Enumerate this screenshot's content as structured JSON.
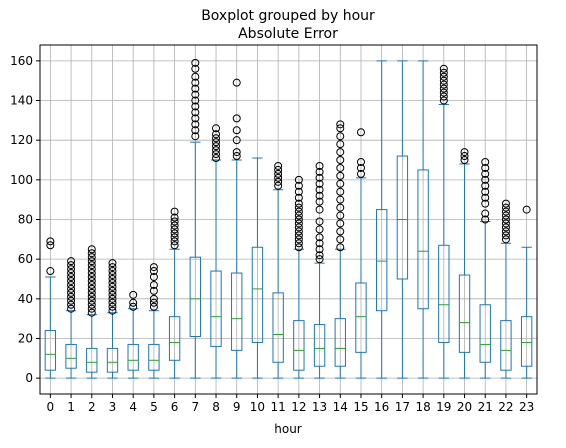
{
  "chart_data": {
    "type": "boxplot",
    "title": "Boxplot grouped by hour",
    "subtitle": "Absolute Error",
    "xlabel": "hour",
    "ylabel": "",
    "ylim": [
      -8,
      168
    ],
    "yticks": [
      0,
      20,
      40,
      60,
      80,
      100,
      120,
      140,
      160
    ],
    "grid": true,
    "categories": [
      "0",
      "1",
      "2",
      "3",
      "4",
      "5",
      "6",
      "7",
      "8",
      "9",
      "10",
      "11",
      "12",
      "13",
      "14",
      "15",
      "16",
      "17",
      "18",
      "19",
      "20",
      "21",
      "22",
      "23"
    ],
    "boxes": [
      {
        "whislo": 0,
        "q1": 4,
        "med": 12,
        "q3": 24,
        "whishi": 51,
        "fliers": [
          54,
          67,
          69
        ]
      },
      {
        "whislo": 0,
        "q1": 5,
        "med": 10,
        "q3": 17,
        "whishi": 34,
        "fliers": [
          35,
          37,
          39,
          41,
          43,
          45,
          47,
          49,
          51,
          53,
          55,
          57,
          59
        ]
      },
      {
        "whislo": 0,
        "q1": 3,
        "med": 8,
        "q3": 15,
        "whishi": 32,
        "fliers": [
          33,
          35,
          37,
          39,
          41,
          43,
          45,
          47,
          49,
          51,
          53,
          55,
          57,
          59,
          61,
          63,
          65
        ]
      },
      {
        "whislo": 0,
        "q1": 3,
        "med": 8,
        "q3": 15,
        "whishi": 33,
        "fliers": [
          34,
          36,
          38,
          40,
          42,
          44,
          46,
          48,
          50,
          52,
          54,
          56,
          58
        ]
      },
      {
        "whislo": 0,
        "q1": 4,
        "med": 9,
        "q3": 17,
        "whishi": 35,
        "fliers": [
          36,
          38,
          42
        ]
      },
      {
        "whislo": 0,
        "q1": 4,
        "med": 9,
        "q3": 17,
        "whishi": 34,
        "fliers": [
          36,
          38,
          40,
          44,
          47,
          51,
          54,
          56
        ]
      },
      {
        "whislo": 0,
        "q1": 9,
        "med": 18,
        "q3": 31,
        "whishi": 65,
        "fliers": [
          67,
          69,
          71,
          73,
          75,
          77,
          79,
          81,
          84
        ]
      },
      {
        "whislo": 0,
        "q1": 21,
        "med": 40,
        "q3": 61,
        "whishi": 119,
        "fliers": [
          122,
          125,
          128,
          131,
          134,
          137,
          140,
          143,
          146,
          149,
          152,
          156,
          159
        ]
      },
      {
        "whislo": 0,
        "q1": 16,
        "med": 31,
        "q3": 54,
        "whishi": 110,
        "fliers": [
          111,
          113,
          115,
          117,
          119,
          121,
          123,
          126
        ]
      },
      {
        "whislo": 0,
        "q1": 14,
        "med": 30,
        "q3": 53,
        "whishi": 110,
        "fliers": [
          112,
          114,
          120,
          125,
          131,
          149
        ]
      },
      {
        "whislo": 0,
        "q1": 18,
        "med": 45,
        "q3": 66,
        "whishi": 111,
        "fliers": []
      },
      {
        "whislo": 0,
        "q1": 8,
        "med": 22,
        "q3": 43,
        "whishi": 95,
        "fliers": [
          97,
          99,
          101,
          103,
          105,
          107
        ]
      },
      {
        "whislo": 0,
        "q1": 4,
        "med": 14,
        "q3": 29,
        "whishi": 65,
        "fliers": [
          66,
          68,
          70,
          72,
          74,
          76,
          78,
          80,
          82,
          84,
          86,
          88,
          91,
          94,
          97,
          100
        ]
      },
      {
        "whislo": 0,
        "q1": 6,
        "med": 15,
        "q3": 27,
        "whishi": 58,
        "fliers": [
          60,
          62,
          65,
          68,
          71,
          75,
          79,
          85,
          89,
          92,
          95,
          98,
          101,
          104,
          107
        ]
      },
      {
        "whislo": 0,
        "q1": 6,
        "med": 15,
        "q3": 30,
        "whishi": 65,
        "fliers": [
          66,
          70,
          74,
          78,
          82,
          86,
          90,
          94,
          98,
          102,
          106,
          110,
          114,
          118,
          122,
          126,
          128
        ]
      },
      {
        "whislo": 0,
        "q1": 13,
        "med": 31,
        "q3": 48,
        "whishi": 101,
        "fliers": [
          103,
          106,
          109,
          124
        ]
      },
      {
        "whislo": 0,
        "q1": 34,
        "med": 59,
        "q3": 85,
        "whishi": 160,
        "fliers": []
      },
      {
        "whislo": 0,
        "q1": 50,
        "med": 80,
        "q3": 112,
        "whishi": 160,
        "fliers": []
      },
      {
        "whislo": 0,
        "q1": 35,
        "med": 64,
        "q3": 105,
        "whishi": 160,
        "fliers": []
      },
      {
        "whislo": 0,
        "q1": 18,
        "med": 37,
        "q3": 67,
        "whishi": 138,
        "fliers": [
          140,
          142,
          144,
          146,
          148,
          150,
          152,
          154,
          156
        ]
      },
      {
        "whislo": 0,
        "q1": 13,
        "med": 28,
        "q3": 52,
        "whishi": 108,
        "fliers": [
          110,
          112,
          114
        ]
      },
      {
        "whislo": 0,
        "q1": 8,
        "med": 17,
        "q3": 37,
        "whishi": 79,
        "fliers": [
          80,
          83,
          88,
          91,
          94,
          97,
          100,
          103,
          106,
          109
        ]
      },
      {
        "whislo": 0,
        "q1": 4,
        "med": 14,
        "q3": 29,
        "whishi": 68,
        "fliers": [
          70,
          72,
          74,
          76,
          78,
          80,
          82,
          84,
          86,
          88
        ]
      },
      {
        "whislo": 0,
        "q1": 6,
        "med": 18,
        "q3": 31,
        "whishi": 66,
        "fliers": [
          85
        ]
      }
    ]
  },
  "colors": {
    "box": "#1f77b4",
    "median": "#2ca02c",
    "flier": "#000000",
    "grid": "#b0b0b0"
  }
}
